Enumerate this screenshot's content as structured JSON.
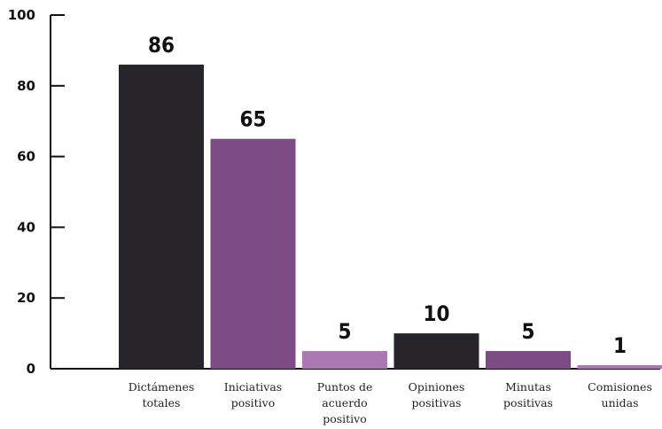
{
  "chart_data": {
    "type": "bar",
    "title": "",
    "xlabel": "",
    "ylabel": "",
    "ylim": [
      0,
      100
    ],
    "yticks": [
      0,
      20,
      40,
      60,
      80,
      100
    ],
    "grid": false,
    "legend": "none",
    "categories": [
      [
        "Dictámenes",
        "totales"
      ],
      [
        "Iniciativas",
        "positivo"
      ],
      [
        "Puntos de",
        "acuerdo",
        "positivo"
      ],
      [
        "Opiniones",
        "positivas"
      ],
      [
        "Minutas",
        "positivas"
      ],
      [
        "Comisiones",
        "unidas"
      ]
    ],
    "values": [
      86,
      65,
      5,
      10,
      5,
      1
    ],
    "data_labels": [
      "86",
      "65",
      "5",
      "10",
      "5",
      "1"
    ],
    "colors": [
      "#28252a",
      "#7c4a84",
      "#ab78b4",
      "#28252a",
      "#7c4a84",
      "#ab78b4"
    ]
  }
}
